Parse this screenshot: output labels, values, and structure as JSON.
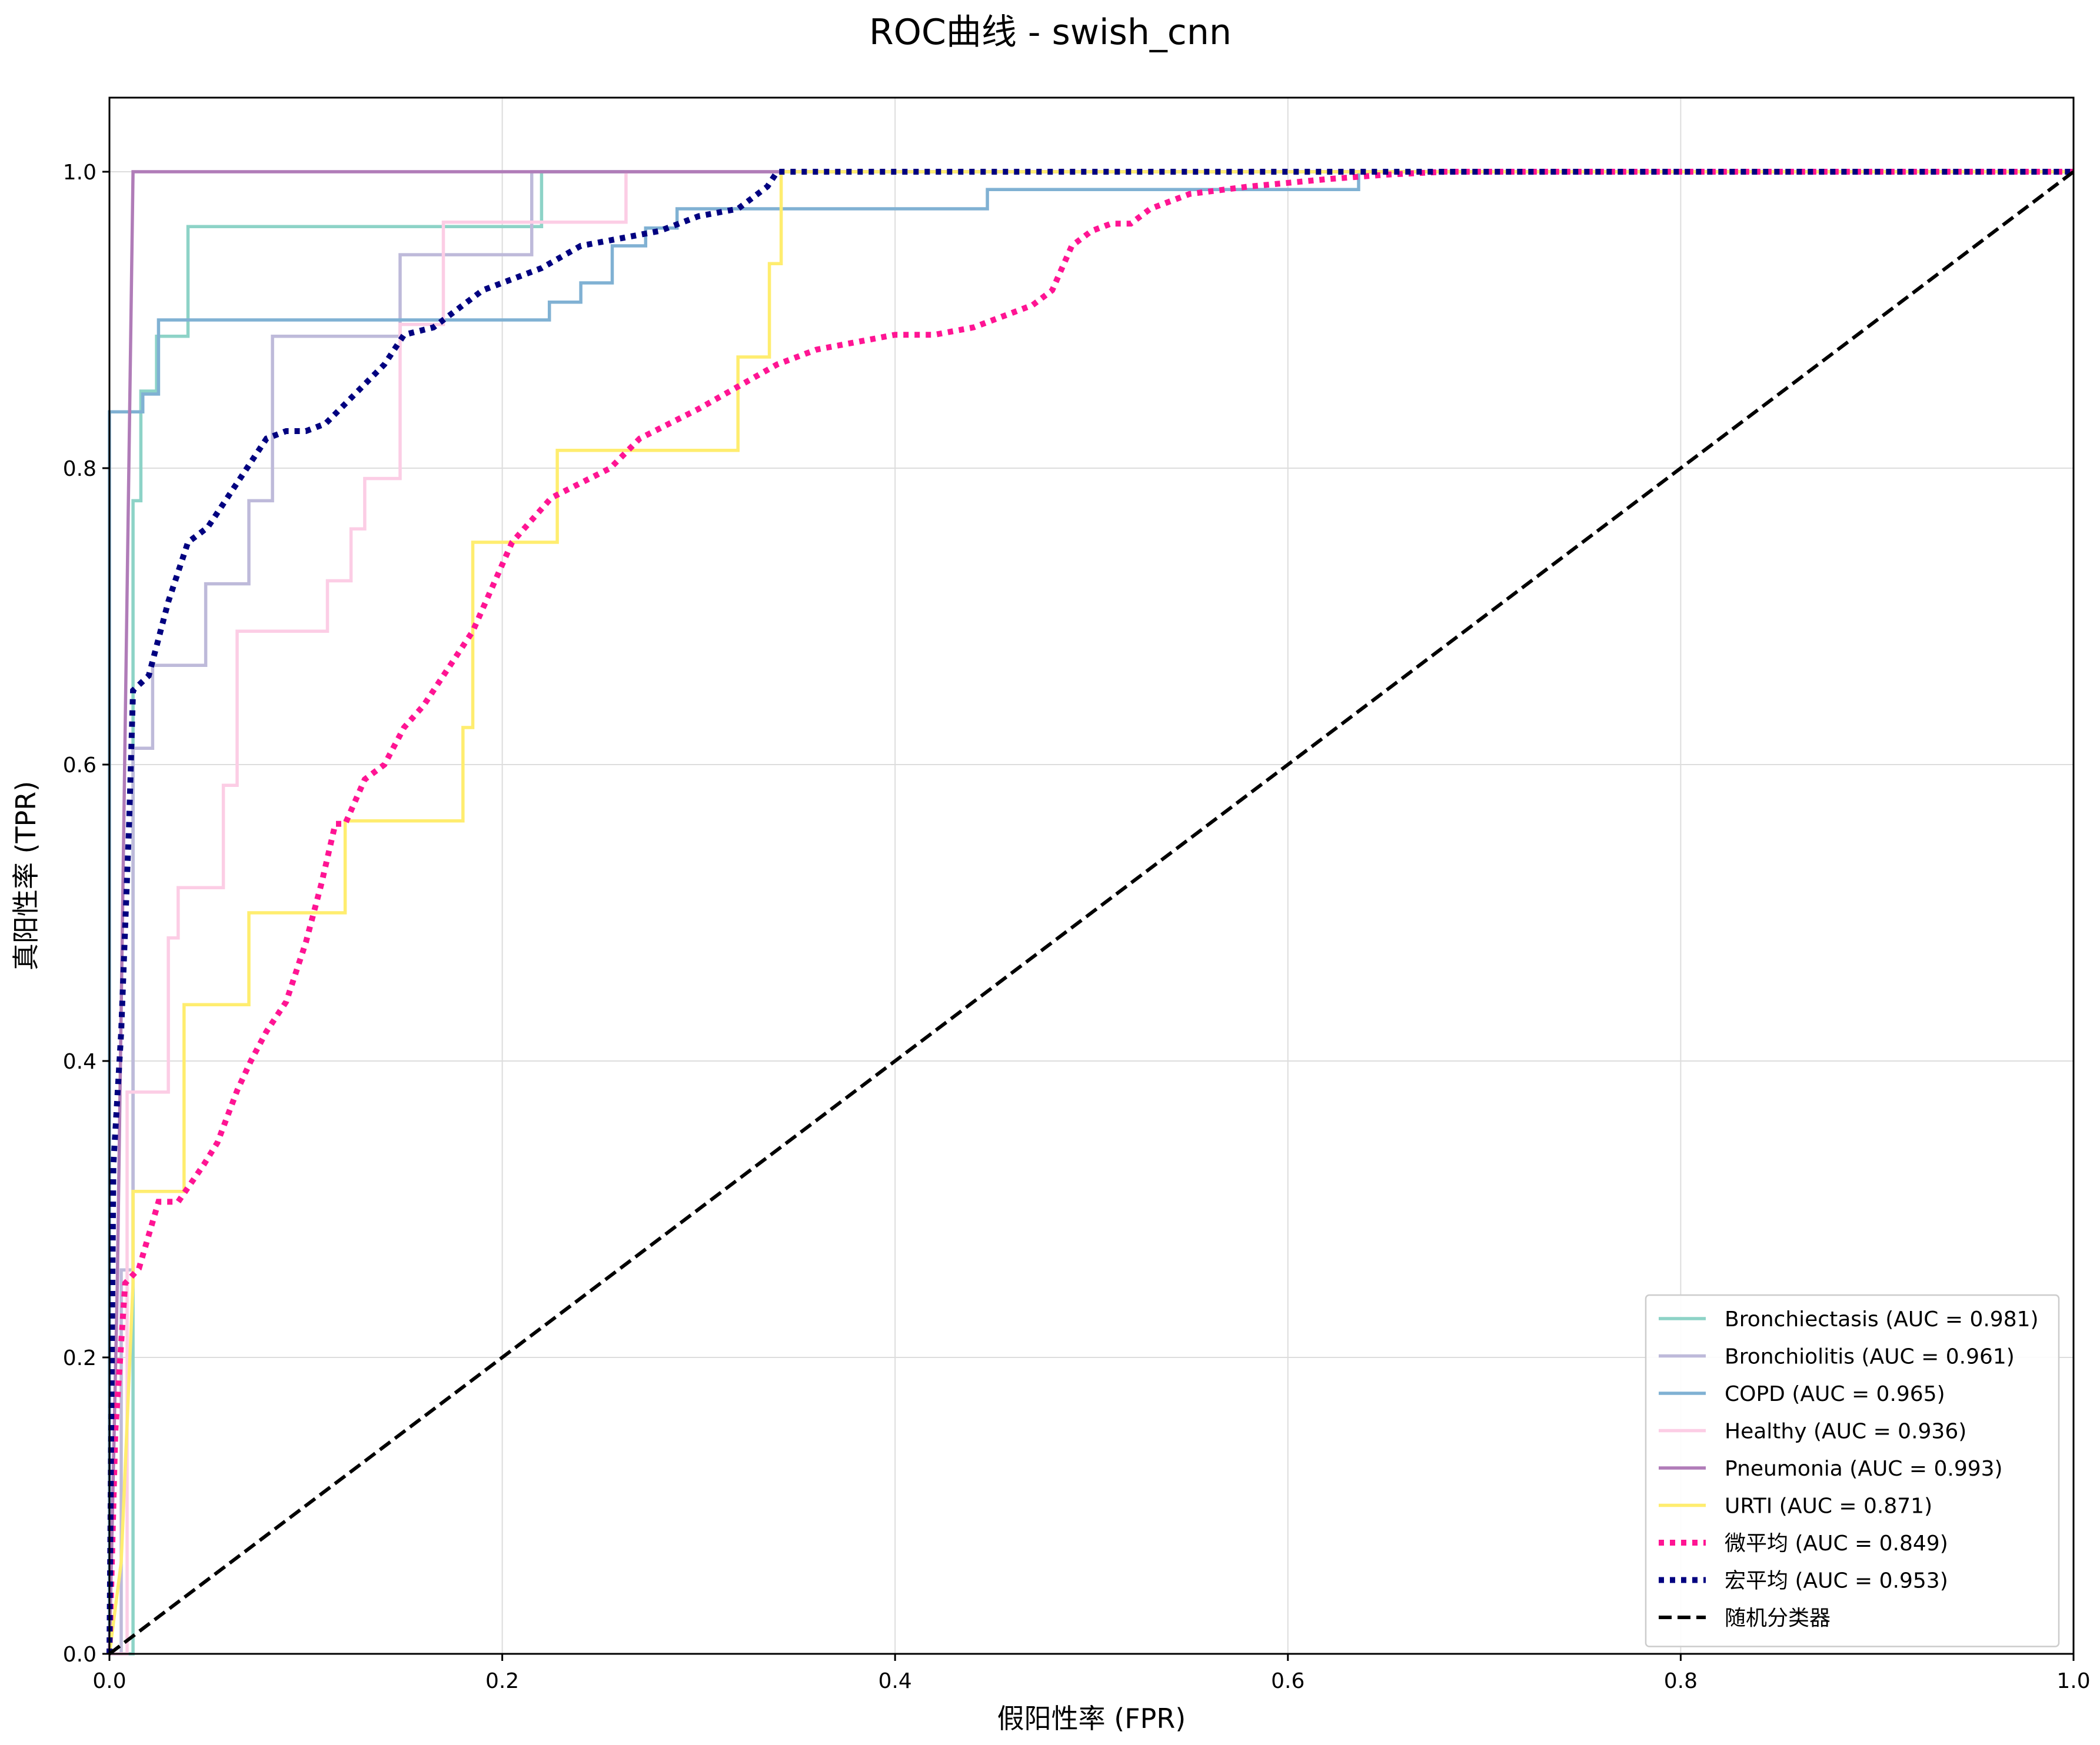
{
  "chart_data": {
    "type": "line",
    "title": "ROC曲线 - swish_cnn",
    "xlabel": "假阳性率 (FPR)",
    "ylabel": "真阳性率 (TPR)",
    "xlim": [
      0,
      1
    ],
    "ylim": [
      0,
      1.05
    ],
    "xticks": [
      0.0,
      0.2,
      0.4,
      0.6,
      0.8,
      1.0
    ],
    "yticks": [
      0.0,
      0.2,
      0.4,
      0.6,
      0.8,
      1.0
    ],
    "xtick_labels": [
      "0.0",
      "0.2",
      "0.4",
      "0.6",
      "0.8",
      "1.0"
    ],
    "ytick_labels": [
      "0.0",
      "0.2",
      "0.4",
      "0.6",
      "0.8",
      "1.0"
    ],
    "grid": true,
    "legend_position": "lower-right",
    "series": [
      {
        "name": "Bronchiectasis (AUC = 0.981)",
        "color": "#8dd3c7",
        "style": "solid",
        "x": [
          0,
          0.012,
          0.012,
          0.016,
          0.016,
          0.024,
          0.024,
          0.04,
          0.04,
          0.22,
          0.22,
          1.0
        ],
        "y": [
          0,
          0,
          0.778,
          0.778,
          0.852,
          0.852,
          0.889,
          0.889,
          0.963,
          0.963,
          1.0,
          1.0
        ]
      },
      {
        "name": "Bronchiolitis (AUC = 0.961)",
        "color": "#bebada",
        "style": "solid",
        "x": [
          0,
          0.006,
          0.006,
          0.012,
          0.012,
          0.016,
          0.016,
          0.022,
          0.022,
          0.049,
          0.049,
          0.071,
          0.071,
          0.083,
          0.083,
          0.148,
          0.148,
          0.215,
          0.215,
          1.0
        ],
        "y": [
          0,
          0,
          0.259,
          0.259,
          0.611,
          0.611,
          0.611,
          0.611,
          0.667,
          0.667,
          0.722,
          0.722,
          0.778,
          0.778,
          0.889,
          0.889,
          0.944,
          0.944,
          1.0,
          1.0
        ]
      },
      {
        "name": "COPD (AUC = 0.965)",
        "color": "#80b1d3",
        "style": "solid",
        "x": [
          0,
          0,
          0.017,
          0.017,
          0.025,
          0.025,
          0.224,
          0.224,
          0.24,
          0.24,
          0.256,
          0.256,
          0.273,
          0.273,
          0.289,
          0.289,
          0.34,
          0.34,
          0.447,
          0.447,
          0.636,
          0.636,
          1.0
        ],
        "y": [
          0,
          0.838,
          0.838,
          0.85,
          0.85,
          0.9,
          0.9,
          0.912,
          0.912,
          0.925,
          0.925,
          0.95,
          0.95,
          0.962,
          0.962,
          0.975,
          0.975,
          0.975,
          0.975,
          0.988,
          0.988,
          1.0,
          1.0
        ]
      },
      {
        "name": "Healthy (AUC = 0.936)",
        "color": "#fccde5",
        "style": "solid",
        "x": [
          0,
          0.009,
          0.009,
          0.03,
          0.03,
          0.035,
          0.035,
          0.058,
          0.058,
          0.065,
          0.065,
          0.111,
          0.111,
          0.123,
          0.123,
          0.13,
          0.13,
          0.148,
          0.148,
          0.17,
          0.17,
          0.263,
          0.263,
          1.0
        ],
        "y": [
          0,
          0,
          0.379,
          0.379,
          0.483,
          0.483,
          0.517,
          0.517,
          0.586,
          0.586,
          0.69,
          0.69,
          0.724,
          0.724,
          0.759,
          0.759,
          0.793,
          0.793,
          0.897,
          0.897,
          0.966,
          0.966,
          1.0,
          1.0
        ]
      },
      {
        "name": "Pneumonia (AUC = 0.993)",
        "color": "#b07cb8",
        "style": "solid",
        "x": [
          0,
          0.004,
          0.012,
          0.34,
          1.0
        ],
        "y": [
          0,
          0.25,
          1.0,
          1.0,
          1.0
        ]
      },
      {
        "name": "URTI (AUC = 0.871)",
        "color": "#ffed6f",
        "style": "solid",
        "x": [
          0,
          0.006,
          0.006,
          0.012,
          0.012,
          0.038,
          0.038,
          0.071,
          0.071,
          0.12,
          0.12,
          0.18,
          0.18,
          0.185,
          0.185,
          0.228,
          0.228,
          0.32,
          0.32,
          0.336,
          0.336,
          0.342,
          0.342,
          1.0
        ],
        "y": [
          0,
          0.062,
          0.062,
          0.25,
          0.312,
          0.312,
          0.438,
          0.438,
          0.5,
          0.5,
          0.562,
          0.562,
          0.625,
          0.625,
          0.75,
          0.75,
          0.812,
          0.812,
          0.875,
          0.875,
          0.938,
          0.938,
          1.0,
          1.0
        ]
      },
      {
        "name": "微平均 (AUC = 0.849)",
        "color": "#ff1493",
        "style": "dotted",
        "x": [
          0,
          0.003,
          0.008,
          0.015,
          0.025,
          0.035,
          0.048,
          0.055,
          0.065,
          0.072,
          0.08,
          0.09,
          0.1,
          0.108,
          0.115,
          0.12,
          0.13,
          0.14,
          0.15,
          0.16,
          0.17,
          0.18,
          0.185,
          0.195,
          0.205,
          0.215,
          0.225,
          0.24,
          0.255,
          0.27,
          0.285,
          0.3,
          0.32,
          0.34,
          0.36,
          0.38,
          0.4,
          0.42,
          0.44,
          0.46,
          0.47,
          0.48,
          0.49,
          0.5,
          0.51,
          0.52,
          0.53,
          0.55,
          0.58,
          0.62,
          0.65,
          0.68,
          1.0
        ],
        "y": [
          0,
          0.15,
          0.25,
          0.26,
          0.305,
          0.305,
          0.33,
          0.345,
          0.38,
          0.4,
          0.42,
          0.44,
          0.48,
          0.52,
          0.56,
          0.56,
          0.59,
          0.6,
          0.625,
          0.64,
          0.66,
          0.68,
          0.69,
          0.72,
          0.75,
          0.765,
          0.78,
          0.79,
          0.8,
          0.82,
          0.83,
          0.84,
          0.855,
          0.87,
          0.88,
          0.885,
          0.89,
          0.89,
          0.895,
          0.905,
          0.91,
          0.92,
          0.95,
          0.96,
          0.965,
          0.965,
          0.975,
          0.985,
          0.99,
          0.995,
          0.998,
          1.0,
          1.0
        ]
      },
      {
        "name": "宏平均 (AUC = 0.953)",
        "color": "#000080",
        "style": "dotted",
        "x": [
          0,
          0.002,
          0.006,
          0.01,
          0.012,
          0.02,
          0.03,
          0.04,
          0.05,
          0.06,
          0.07,
          0.08,
          0.09,
          0.1,
          0.11,
          0.125,
          0.14,
          0.15,
          0.165,
          0.18,
          0.19,
          0.2,
          0.22,
          0.24,
          0.26,
          0.28,
          0.3,
          0.32,
          0.335,
          0.34,
          0.5,
          0.7,
          1.0
        ],
        "y": [
          0,
          0.33,
          0.42,
          0.56,
          0.65,
          0.66,
          0.71,
          0.75,
          0.76,
          0.78,
          0.8,
          0.82,
          0.825,
          0.825,
          0.83,
          0.85,
          0.87,
          0.89,
          0.895,
          0.91,
          0.92,
          0.925,
          0.935,
          0.95,
          0.955,
          0.96,
          0.97,
          0.975,
          0.99,
          1.0,
          1.0,
          1.0,
          1.0
        ]
      },
      {
        "name": "随机分类器",
        "color": "#000000",
        "style": "dashed",
        "x": [
          0,
          1
        ],
        "y": [
          0,
          1
        ]
      }
    ]
  }
}
